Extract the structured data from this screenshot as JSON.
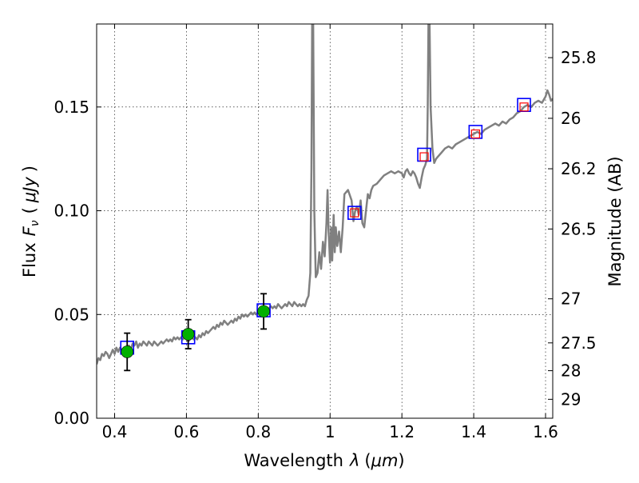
{
  "chart_data": {
    "type": "line",
    "xlabel": "Wavelength",
    "xlabel_symbol": "λ",
    "xlabel_unit_open": "(",
    "xlabel_unit": "μm",
    "xlabel_unit_close": ")",
    "ylabel": "Flux",
    "ylabel_symbol": "F",
    "ylabel_subscript": "ν",
    "ylabel_unit_open": "(",
    "ylabel_unit": "μJy",
    "ylabel_unit_close": ")",
    "y2label": "Magnitude (AB)",
    "xlim": [
      0.35,
      1.62
    ],
    "ylim": [
      0.0,
      0.19
    ],
    "grid": true,
    "x_ticks": [
      {
        "value": 0.4,
        "label": "0.4"
      },
      {
        "value": 0.6,
        "label": "0.6"
      },
      {
        "value": 0.8,
        "label": "0.8"
      },
      {
        "value": 1.0,
        "label": "1"
      },
      {
        "value": 1.2,
        "label": "1.2"
      },
      {
        "value": 1.4,
        "label": "1.4"
      },
      {
        "value": 1.6,
        "label": "1.6"
      }
    ],
    "y_ticks": [
      {
        "value": 0.0,
        "label": "0.00"
      },
      {
        "value": 0.05,
        "label": "0.05"
      },
      {
        "value": 0.1,
        "label": "0.10"
      },
      {
        "value": 0.15,
        "label": "0.15"
      }
    ],
    "y2_ticks": [
      {
        "value": 25.8,
        "label": "25.8"
      },
      {
        "value": 26.0,
        "label": "26"
      },
      {
        "value": 26.2,
        "label": "26.2"
      },
      {
        "value": 26.5,
        "label": "26.5"
      },
      {
        "value": 27.0,
        "label": "27"
      },
      {
        "value": 27.5,
        "label": "27.5"
      },
      {
        "value": 28.0,
        "label": "28"
      },
      {
        "value": 29.0,
        "label": "29"
      }
    ],
    "series": [
      {
        "kind": "spectrum",
        "color": "#808080",
        "points": [
          [
            0.35,
            0.026
          ],
          [
            0.355,
            0.029
          ],
          [
            0.36,
            0.028
          ],
          [
            0.365,
            0.031
          ],
          [
            0.37,
            0.03
          ],
          [
            0.375,
            0.032
          ],
          [
            0.38,
            0.031
          ],
          [
            0.385,
            0.029
          ],
          [
            0.39,
            0.031
          ],
          [
            0.395,
            0.033
          ],
          [
            0.4,
            0.031
          ],
          [
            0.405,
            0.034
          ],
          [
            0.41,
            0.032
          ],
          [
            0.415,
            0.034
          ],
          [
            0.42,
            0.033
          ],
          [
            0.425,
            0.031
          ],
          [
            0.43,
            0.034
          ],
          [
            0.435,
            0.032
          ],
          [
            0.44,
            0.035
          ],
          [
            0.445,
            0.033
          ],
          [
            0.45,
            0.036
          ],
          [
            0.455,
            0.035
          ],
          [
            0.46,
            0.037
          ],
          [
            0.465,
            0.034
          ],
          [
            0.47,
            0.036
          ],
          [
            0.475,
            0.035
          ],
          [
            0.48,
            0.037
          ],
          [
            0.485,
            0.036
          ],
          [
            0.49,
            0.035
          ],
          [
            0.495,
            0.037
          ],
          [
            0.5,
            0.036
          ],
          [
            0.505,
            0.035
          ],
          [
            0.51,
            0.037
          ],
          [
            0.515,
            0.036
          ],
          [
            0.52,
            0.035
          ],
          [
            0.525,
            0.036
          ],
          [
            0.53,
            0.037
          ],
          [
            0.535,
            0.036
          ],
          [
            0.54,
            0.037
          ],
          [
            0.545,
            0.038
          ],
          [
            0.55,
            0.037
          ],
          [
            0.555,
            0.038
          ],
          [
            0.56,
            0.037
          ],
          [
            0.565,
            0.039
          ],
          [
            0.57,
            0.038
          ],
          [
            0.575,
            0.039
          ],
          [
            0.58,
            0.038
          ],
          [
            0.585,
            0.039
          ],
          [
            0.59,
            0.038
          ],
          [
            0.595,
            0.039
          ],
          [
            0.6,
            0.038
          ],
          [
            0.605,
            0.037
          ],
          [
            0.61,
            0.038
          ],
          [
            0.615,
            0.039
          ],
          [
            0.62,
            0.038
          ],
          [
            0.625,
            0.039
          ],
          [
            0.63,
            0.038
          ],
          [
            0.635,
            0.04
          ],
          [
            0.64,
            0.039
          ],
          [
            0.645,
            0.041
          ],
          [
            0.65,
            0.04
          ],
          [
            0.655,
            0.042
          ],
          [
            0.66,
            0.041
          ],
          [
            0.665,
            0.042
          ],
          [
            0.67,
            0.043
          ],
          [
            0.675,
            0.044
          ],
          [
            0.68,
            0.043
          ],
          [
            0.685,
            0.045
          ],
          [
            0.69,
            0.044
          ],
          [
            0.695,
            0.046
          ],
          [
            0.7,
            0.045
          ],
          [
            0.705,
            0.047
          ],
          [
            0.71,
            0.046
          ],
          [
            0.715,
            0.045
          ],
          [
            0.72,
            0.046
          ],
          [
            0.725,
            0.047
          ],
          [
            0.73,
            0.046
          ],
          [
            0.735,
            0.048
          ],
          [
            0.74,
            0.047
          ],
          [
            0.745,
            0.049
          ],
          [
            0.75,
            0.048
          ],
          [
            0.755,
            0.05
          ],
          [
            0.76,
            0.049
          ],
          [
            0.765,
            0.05
          ],
          [
            0.77,
            0.049
          ],
          [
            0.775,
            0.05
          ],
          [
            0.78,
            0.051
          ],
          [
            0.785,
            0.05
          ],
          [
            0.79,
            0.051
          ],
          [
            0.795,
            0.05
          ],
          [
            0.8,
            0.051
          ],
          [
            0.805,
            0.052
          ],
          [
            0.81,
            0.051
          ],
          [
            0.815,
            0.052
          ],
          [
            0.82,
            0.053
          ],
          [
            0.825,
            0.052
          ],
          [
            0.83,
            0.053
          ],
          [
            0.835,
            0.054
          ],
          [
            0.84,
            0.053
          ],
          [
            0.845,
            0.054
          ],
          [
            0.85,
            0.053
          ],
          [
            0.855,
            0.055
          ],
          [
            0.86,
            0.054
          ],
          [
            0.865,
            0.053
          ],
          [
            0.87,
            0.054
          ],
          [
            0.875,
            0.055
          ],
          [
            0.88,
            0.054
          ],
          [
            0.885,
            0.056
          ],
          [
            0.89,
            0.055
          ],
          [
            0.895,
            0.054
          ],
          [
            0.9,
            0.056
          ],
          [
            0.905,
            0.055
          ],
          [
            0.91,
            0.054
          ],
          [
            0.915,
            0.055
          ],
          [
            0.92,
            0.054
          ],
          [
            0.925,
            0.055
          ],
          [
            0.93,
            0.054
          ],
          [
            0.935,
            0.057
          ],
          [
            0.94,
            0.059
          ],
          [
            0.945,
            0.07
          ],
          [
            0.948,
            0.12
          ],
          [
            0.95,
            0.19
          ],
          [
            0.953,
            0.19
          ],
          [
            0.956,
            0.1
          ],
          [
            0.96,
            0.068
          ],
          [
            0.965,
            0.07
          ],
          [
            0.97,
            0.08
          ],
          [
            0.975,
            0.072
          ],
          [
            0.98,
            0.085
          ],
          [
            0.985,
            0.078
          ],
          [
            0.99,
            0.094
          ],
          [
            0.993,
            0.11
          ],
          [
            0.996,
            0.09
          ],
          [
            1.0,
            0.075
          ],
          [
            1.003,
            0.092
          ],
          [
            1.006,
            0.076
          ],
          [
            1.01,
            0.098
          ],
          [
            1.013,
            0.08
          ],
          [
            1.016,
            0.092
          ],
          [
            1.02,
            0.083
          ],
          [
            1.025,
            0.09
          ],
          [
            1.03,
            0.08
          ],
          [
            1.035,
            0.092
          ],
          [
            1.04,
            0.108
          ],
          [
            1.05,
            0.11
          ],
          [
            1.06,
            0.105
          ],
          [
            1.065,
            0.095
          ],
          [
            1.07,
            0.1
          ],
          [
            1.075,
            0.102
          ],
          [
            1.08,
            0.098
          ],
          [
            1.085,
            0.105
          ],
          [
            1.09,
            0.094
          ],
          [
            1.095,
            0.092
          ],
          [
            1.1,
            0.1
          ],
          [
            1.105,
            0.108
          ],
          [
            1.11,
            0.106
          ],
          [
            1.115,
            0.11
          ],
          [
            1.12,
            0.112
          ],
          [
            1.13,
            0.113
          ],
          [
            1.14,
            0.115
          ],
          [
            1.15,
            0.117
          ],
          [
            1.16,
            0.118
          ],
          [
            1.17,
            0.119
          ],
          [
            1.18,
            0.118
          ],
          [
            1.19,
            0.119
          ],
          [
            1.2,
            0.118
          ],
          [
            1.205,
            0.116
          ],
          [
            1.21,
            0.119
          ],
          [
            1.215,
            0.12
          ],
          [
            1.22,
            0.118
          ],
          [
            1.225,
            0.117
          ],
          [
            1.23,
            0.119
          ],
          [
            1.235,
            0.118
          ],
          [
            1.24,
            0.116
          ],
          [
            1.245,
            0.113
          ],
          [
            1.25,
            0.111
          ],
          [
            1.255,
            0.116
          ],
          [
            1.26,
            0.12
          ],
          [
            1.265,
            0.122
          ],
          [
            1.27,
            0.125
          ],
          [
            1.272,
            0.15
          ],
          [
            1.274,
            0.19
          ],
          [
            1.277,
            0.19
          ],
          [
            1.28,
            0.15
          ],
          [
            1.285,
            0.13
          ],
          [
            1.29,
            0.123
          ],
          [
            1.295,
            0.125
          ],
          [
            1.3,
            0.126
          ],
          [
            1.31,
            0.128
          ],
          [
            1.32,
            0.13
          ],
          [
            1.33,
            0.131
          ],
          [
            1.34,
            0.13
          ],
          [
            1.35,
            0.132
          ],
          [
            1.36,
            0.133
          ],
          [
            1.37,
            0.134
          ],
          [
            1.38,
            0.135
          ],
          [
            1.39,
            0.136
          ],
          [
            1.4,
            0.137
          ],
          [
            1.41,
            0.138
          ],
          [
            1.42,
            0.137
          ],
          [
            1.43,
            0.139
          ],
          [
            1.44,
            0.14
          ],
          [
            1.45,
            0.141
          ],
          [
            1.46,
            0.142
          ],
          [
            1.47,
            0.141
          ],
          [
            1.48,
            0.143
          ],
          [
            1.49,
            0.142
          ],
          [
            1.5,
            0.144
          ],
          [
            1.51,
            0.145
          ],
          [
            1.52,
            0.147
          ],
          [
            1.53,
            0.148
          ],
          [
            1.54,
            0.15
          ],
          [
            1.55,
            0.151
          ],
          [
            1.56,
            0.15
          ],
          [
            1.57,
            0.152
          ],
          [
            1.58,
            0.153
          ],
          [
            1.59,
            0.152
          ],
          [
            1.6,
            0.155
          ],
          [
            1.605,
            0.158
          ],
          [
            1.61,
            0.156
          ],
          [
            1.615,
            0.153
          ],
          [
            1.62,
            0.154
          ]
        ]
      },
      {
        "kind": "model_photometry",
        "marker": "square",
        "edgecolor": "#0000ff",
        "points": [
          [
            0.435,
            0.034
          ],
          [
            0.605,
            0.039
          ],
          [
            0.815,
            0.052
          ],
          [
            1.068,
            0.099
          ],
          [
            1.262,
            0.127
          ],
          [
            1.405,
            0.138
          ],
          [
            1.54,
            0.151
          ]
        ]
      },
      {
        "kind": "observed_photometry",
        "marker": "circle",
        "color": "#00b000",
        "points": [
          {
            "x": 0.435,
            "y": 0.032,
            "err": 0.009
          },
          {
            "x": 0.605,
            "y": 0.0405,
            "err": 0.007
          },
          {
            "x": 0.815,
            "y": 0.0515,
            "err": 0.0085
          }
        ]
      },
      {
        "kind": "upper_limits",
        "marker": "square-open",
        "edgecolor": "#ff0000",
        "points": [
          [
            1.068,
            0.099
          ],
          [
            1.262,
            0.126
          ],
          [
            1.405,
            0.137
          ],
          [
            1.54,
            0.15
          ]
        ]
      }
    ]
  }
}
